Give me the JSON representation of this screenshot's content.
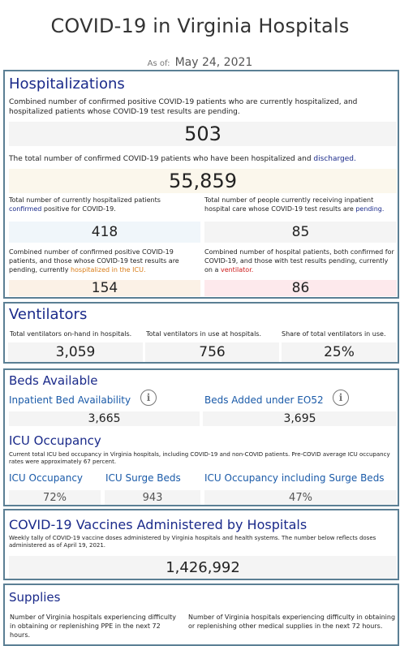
{
  "header": {
    "title": "COVID-19 in Virginia Hospitals",
    "as_of_label": "As of:",
    "as_of_date": "May 24, 2021"
  },
  "hospitalizations": {
    "title": "Hospitalizations",
    "combined_desc": "Combined number of confirmed positive COVID-19 patients who are currently hospitalized, and hospitalized patients whose COVID-19 test results are pending.",
    "combined_value": "503",
    "discharged_desc_pre": "The total number of confirmed COVID-19 patients who have been hospitalized and ",
    "discharged_desc_link": "discharged.",
    "discharged_value": "55,859",
    "confirmed_desc_pre": "Total number of currently hospitalized patients",
    "confirmed_desc_link": "confirmed",
    "confirmed_desc_post": " positive for COVID-19.",
    "confirmed_value": "418",
    "pending_desc_pre": "Total number of people currently receiving inpatient hospital care whose COVID-19 test results are ",
    "pending_desc_link": "pending.",
    "pending_value": "85",
    "icu_desc_pre": "Combined number of confirmed positive COVID-19 patients, and those whose COVID-19 test results are pending, currently ",
    "icu_desc_link": "hospitalized in the ICU.",
    "icu_value": "154",
    "vent_desc_pre": "Combined number of hospital patients, both confirmed for COVID-19, and those with test results pending, currently on a ",
    "vent_desc_link": "ventilator.",
    "vent_value": "86",
    "colors": {
      "combined_bg": "#f4f4f4",
      "discharged_bg": "#fbf7ec",
      "confirmed_bg": "#f0f6fa",
      "pending_bg": "#f4f4f4",
      "icu_bg": "#fbf1e6",
      "vent_bg": "#fde9ec"
    }
  },
  "ventilators": {
    "title": "Ventilators",
    "onhand_label": "Total ventilators on-hand in hospitals.",
    "onhand_value": "3,059",
    "inuse_label": "Total ventilators in use at hospitals.",
    "inuse_value": "756",
    "share_label": "Share of total ventilators in use.",
    "share_value": "25%"
  },
  "beds": {
    "title": "Beds Available",
    "inpatient_label": "Inpatient Bed Availability",
    "inpatient_value": "3,665",
    "added_label": "Beds Added under EO52",
    "added_value": "3,695",
    "icu_title": "ICU Occupancy",
    "icu_desc": "Current total ICU bed occupancy in Virginia hospitals, including COVID-19 and non-COVID patients. Pre-COVID average ICU occupancy rates were approximately 67 percent.",
    "icu_occ_label": "ICU Occupancy",
    "icu_occ_value": "72%",
    "surge_label": "ICU Surge Beds",
    "surge_value": "943",
    "occ_surge_label": "ICU Occupancy including Surge Beds",
    "occ_surge_value": "47%",
    "info_icon": "info-icon"
  },
  "vaccines": {
    "title": "COVID-19 Vaccines Administered by Hospitals",
    "desc": "Weekly tally of COVID-19 vaccine doses administered by Virginia hospitals and health systems. The number below reflects doses administered as of April 19, 2021.",
    "value": "1,426,992"
  },
  "supplies": {
    "title": "Supplies",
    "ppe_desc": "Number of Virginia hospitals experiencing difficulty in obtaining or replenishing PPE in the next 72 hours.",
    "other_desc": "Number of Virginia hospitals experiencing difficulty in obtaining or replenishing other medical supplies in the next 72 hours."
  }
}
